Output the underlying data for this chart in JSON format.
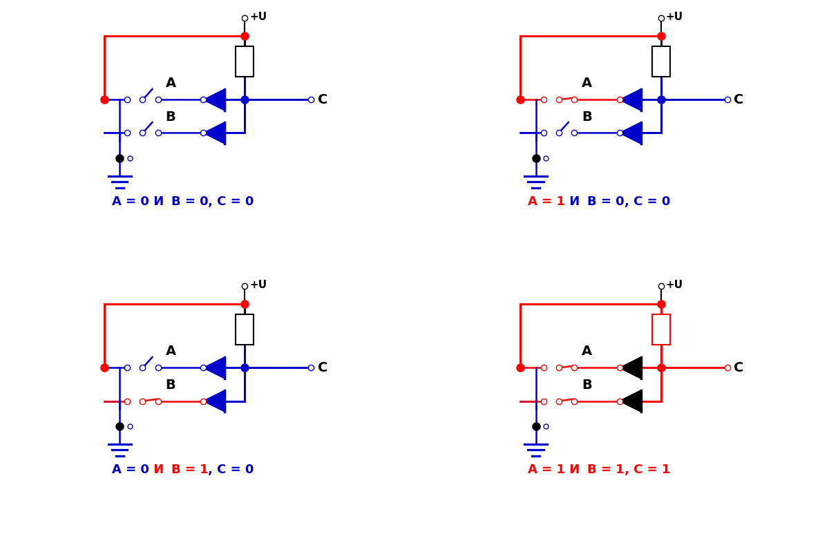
{
  "panels": [
    {
      "label_parts": [
        [
          "A = 0",
          "blue"
        ],
        [
          " И ",
          "blue"
        ],
        [
          "B = 0",
          "blue"
        ],
        [
          ", C = 0",
          "blue"
        ]
      ],
      "A": 0,
      "B": 0,
      "C": 0
    },
    {
      "label_parts": [
        [
          "A = 1",
          "red"
        ],
        [
          " И ",
          "blue"
        ],
        [
          "B = 0",
          "blue"
        ],
        [
          ", C = 0",
          "blue"
        ]
      ],
      "A": 1,
      "B": 0,
      "C": 0
    },
    {
      "label_parts": [
        [
          "A = 0",
          "blue"
        ],
        [
          " И ",
          "red"
        ],
        [
          "B = 1",
          "red"
        ],
        [
          ", C = 0",
          "blue"
        ]
      ],
      "A": 0,
      "B": 1,
      "C": 0
    },
    {
      "label_parts": [
        [
          "A = 1",
          "red"
        ],
        [
          " И ",
          "red"
        ],
        [
          "B = 1",
          "red"
        ],
        [
          ", C = 1",
          "red"
        ]
      ],
      "A": 1,
      "B": 1,
      "C": 1
    }
  ],
  "BLUE": "#0000CD",
  "RED": "#FF0000",
  "BLACK": "#000000"
}
